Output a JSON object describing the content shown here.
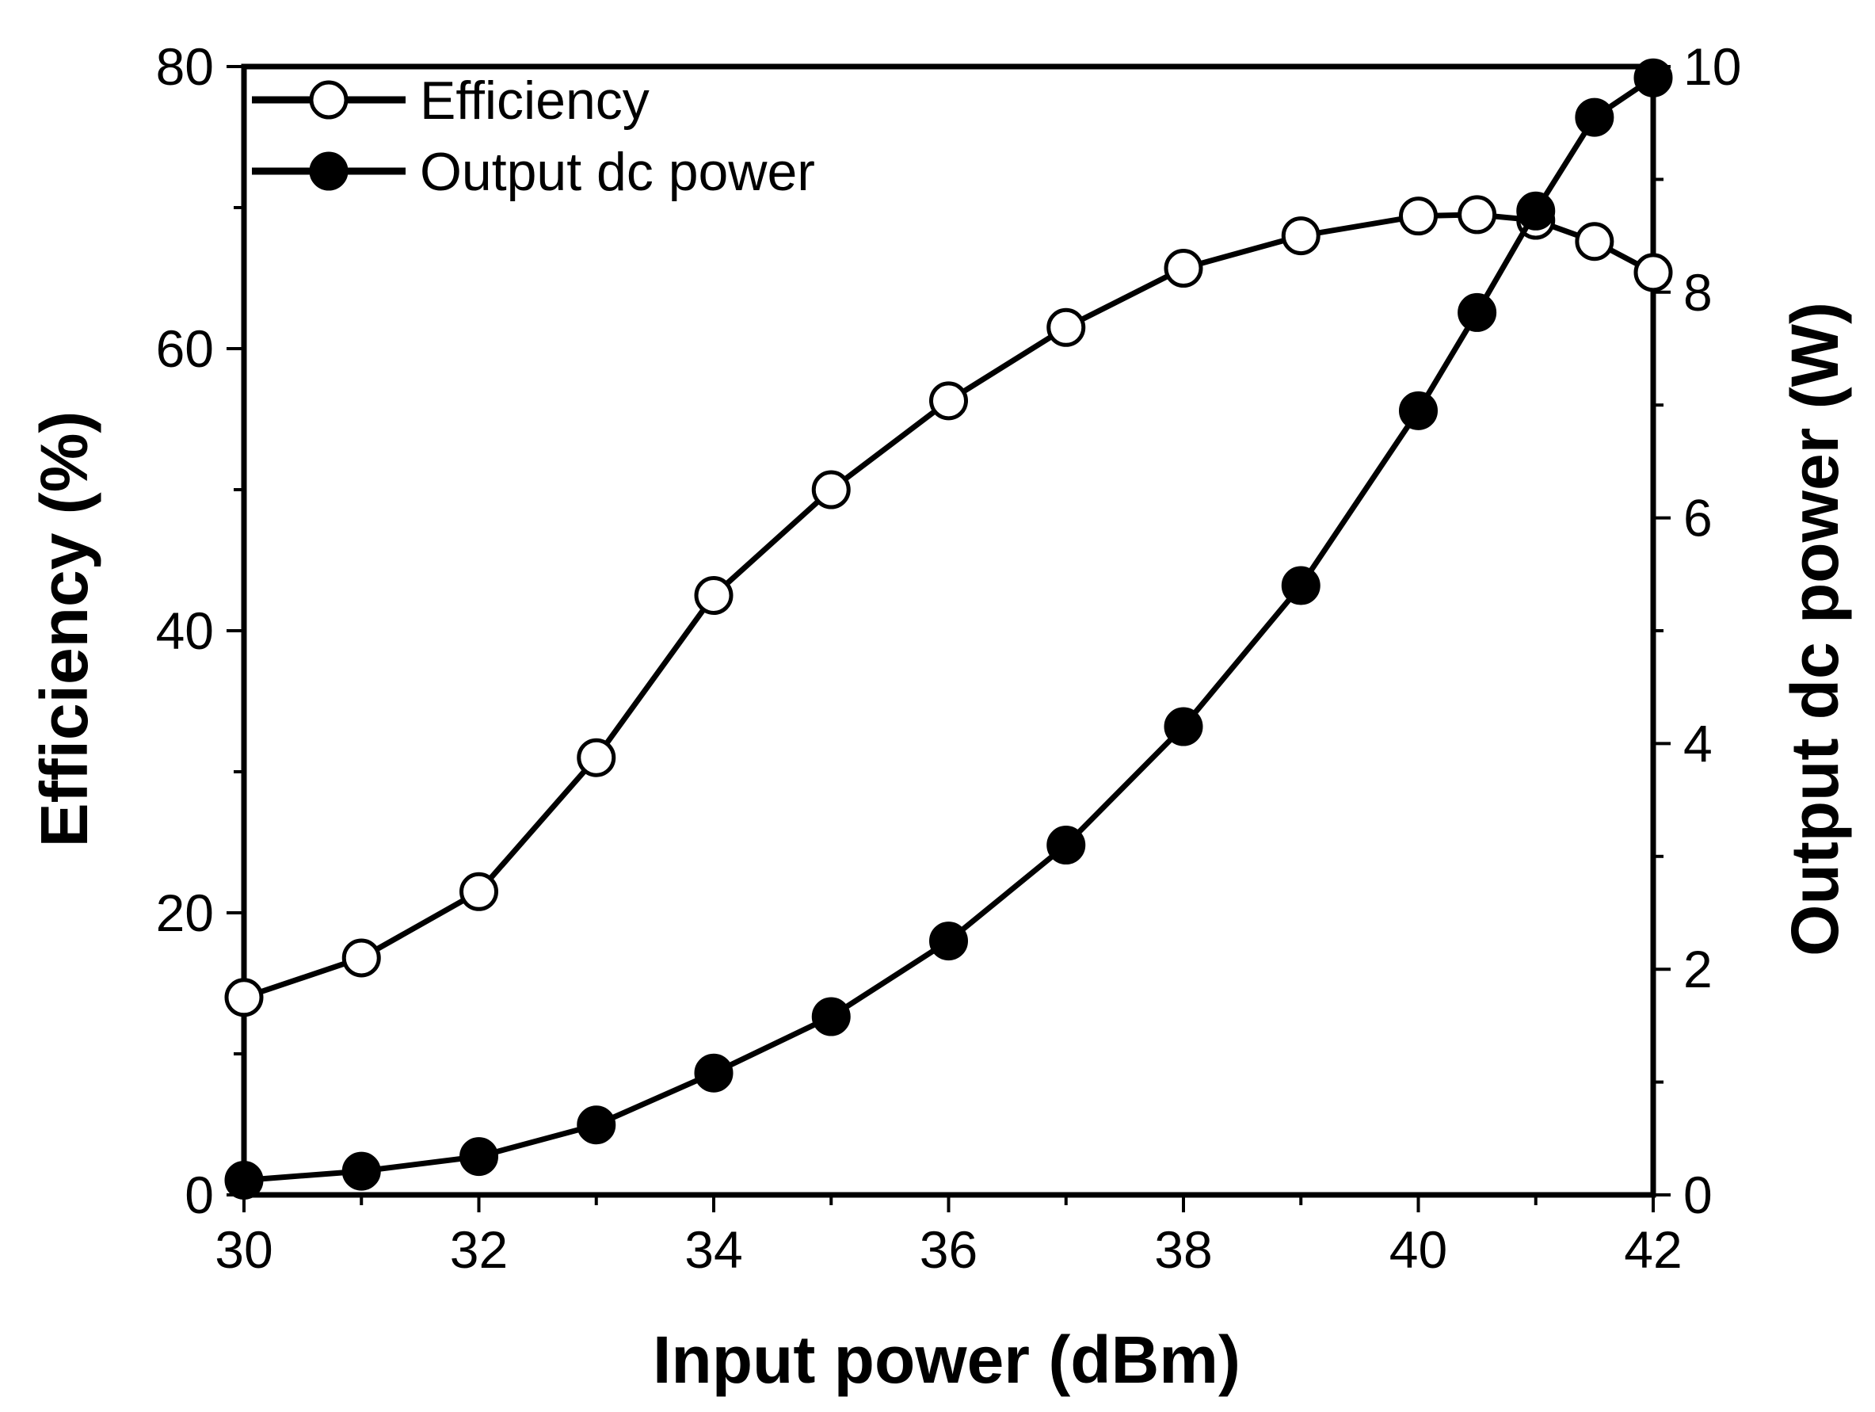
{
  "chart_data": {
    "type": "line",
    "title": "",
    "xlabel": "Input power (dBm)",
    "ylabel_left": "Efficiency (%)",
    "ylabel_right": "Output dc power (W)",
    "xlim": [
      30,
      42
    ],
    "ylim_left": [
      0,
      80
    ],
    "ylim_right": [
      0,
      10
    ],
    "x_ticks": [
      30,
      32,
      34,
      36,
      38,
      40,
      42
    ],
    "y_left_ticks": [
      0,
      20,
      40,
      60,
      80
    ],
    "y_right_ticks": [
      0,
      2,
      4,
      6,
      8,
      10
    ],
    "grid": false,
    "legend_position": "top-left",
    "series": [
      {
        "name": "Efficiency",
        "axis": "left",
        "marker": "open-circle",
        "x": [
          30,
          31,
          32,
          33,
          34,
          35,
          36,
          37,
          38,
          39,
          40,
          40.5,
          41,
          41.5,
          42
        ],
        "values": [
          14.0,
          16.8,
          21.5,
          31.0,
          42.5,
          50.0,
          56.3,
          61.5,
          65.7,
          68.0,
          69.4,
          69.5,
          69.1,
          67.6,
          65.4
        ]
      },
      {
        "name": "Output dc power",
        "axis": "right",
        "marker": "filled-circle",
        "x": [
          30,
          31,
          32,
          33,
          34,
          35,
          36,
          37,
          38,
          39,
          40,
          40.5,
          41,
          41.5,
          42
        ],
        "values": [
          0.13,
          0.21,
          0.34,
          0.62,
          1.08,
          1.58,
          2.25,
          3.1,
          4.15,
          5.4,
          6.95,
          7.82,
          8.72,
          9.55,
          9.9
        ]
      }
    ]
  },
  "colors": {
    "line": "#000000",
    "background": "#ffffff"
  }
}
